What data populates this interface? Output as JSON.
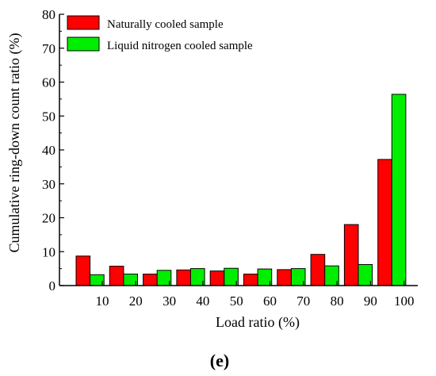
{
  "chart_data": {
    "type": "bar",
    "xlabel": "Load ratio (%)",
    "ylabel": "Cumulative ring-down count ratio (%)",
    "ylim": [
      0,
      80
    ],
    "yticks": [
      0,
      10,
      20,
      30,
      40,
      50,
      60,
      70,
      80
    ],
    "x_tick_labels": [
      "10",
      "20",
      "30",
      "40",
      "50",
      "60",
      "70",
      "80",
      "90",
      "100"
    ],
    "legend_position": "top-left",
    "series": [
      {
        "name": "Naturally cooled sample",
        "color": "#ff0000",
        "values": [
          8.7,
          5.7,
          3.4,
          4.6,
          4.3,
          3.4,
          4.7,
          9.2,
          18.0,
          37.2
        ]
      },
      {
        "name": "Liquid nitrogen cooled sample",
        "color": "#00ee00",
        "values": [
          3.2,
          3.4,
          4.5,
          5.0,
          5.1,
          4.9,
          5.0,
          5.8,
          6.2,
          56.4
        ]
      }
    ]
  },
  "caption": "(e)"
}
